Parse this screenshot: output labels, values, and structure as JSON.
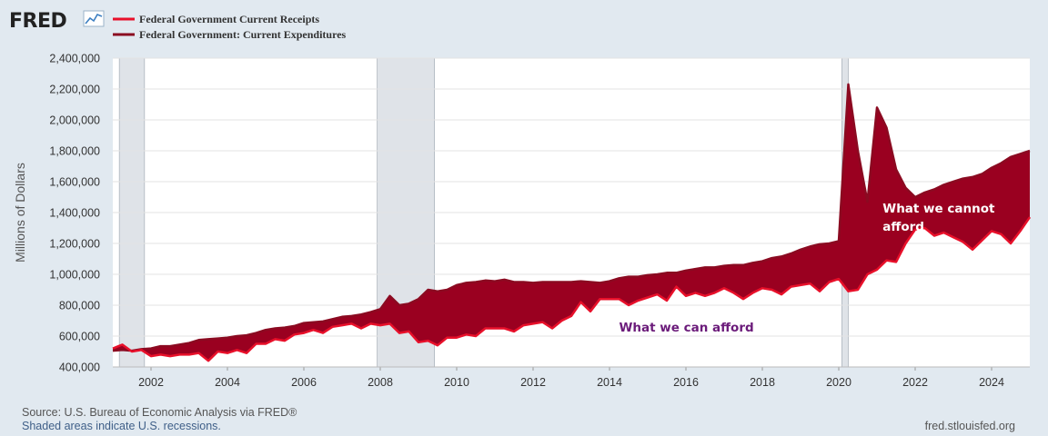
{
  "brand": {
    "name": "FRED"
  },
  "footer": {
    "source": "Source: U.S. Bureau of Economic Analysis via FRED®",
    "note": "Shaded areas indicate U.S. recessions.",
    "url": "fred.stlouisfed.org"
  },
  "colors": {
    "receipts": "#e8102a",
    "expenditures": "#8b0a21",
    "fill": "#9a0020",
    "recession": "#dfe3e8",
    "background": "#e1e9f0"
  },
  "chart_data": {
    "type": "area",
    "title": "",
    "xlabel": "",
    "ylabel": "Millions of Dollars",
    "xlim": [
      2001.0,
      2025.0
    ],
    "ylim": [
      400000,
      2400000
    ],
    "yticks": [
      400000,
      600000,
      800000,
      1000000,
      1200000,
      1400000,
      1600000,
      1800000,
      2000000,
      2200000,
      2400000
    ],
    "ytick_labels": [
      "400,000",
      "600,000",
      "800,000",
      "1,000,000",
      "1,200,000",
      "1,400,000",
      "1,600,000",
      "1,800,000",
      "2,000,000",
      "2,200,000",
      "2,400,000"
    ],
    "xticks": [
      2002,
      2004,
      2006,
      2008,
      2010,
      2012,
      2014,
      2016,
      2018,
      2020,
      2022,
      2024
    ],
    "xtick_labels": [
      "2002",
      "2004",
      "2006",
      "2008",
      "2010",
      "2012",
      "2014",
      "2016",
      "2018",
      "2020",
      "2022",
      "2024"
    ],
    "grid": true,
    "recessions": [
      [
        2001.17,
        2001.83
      ],
      [
        2007.92,
        2009.42
      ],
      [
        2020.08,
        2020.25
      ]
    ],
    "series": [
      {
        "name": "Federal Government Current Receipts",
        "points": [
          [
            2001.0,
            520000
          ],
          [
            2001.25,
            545000
          ],
          [
            2001.5,
            500000
          ],
          [
            2001.75,
            510000
          ],
          [
            2002.0,
            470000
          ],
          [
            2002.25,
            480000
          ],
          [
            2002.5,
            470000
          ],
          [
            2002.75,
            480000
          ],
          [
            2003.0,
            480000
          ],
          [
            2003.25,
            490000
          ],
          [
            2003.5,
            440000
          ],
          [
            2003.75,
            500000
          ],
          [
            2004.0,
            490000
          ],
          [
            2004.25,
            510000
          ],
          [
            2004.5,
            490000
          ],
          [
            2004.75,
            550000
          ],
          [
            2005.0,
            550000
          ],
          [
            2005.25,
            580000
          ],
          [
            2005.5,
            570000
          ],
          [
            2005.75,
            610000
          ],
          [
            2006.0,
            620000
          ],
          [
            2006.25,
            640000
          ],
          [
            2006.5,
            620000
          ],
          [
            2006.75,
            660000
          ],
          [
            2007.0,
            670000
          ],
          [
            2007.25,
            680000
          ],
          [
            2007.5,
            650000
          ],
          [
            2007.75,
            680000
          ],
          [
            2008.0,
            670000
          ],
          [
            2008.25,
            680000
          ],
          [
            2008.5,
            620000
          ],
          [
            2008.75,
            630000
          ],
          [
            2009.0,
            560000
          ],
          [
            2009.25,
            570000
          ],
          [
            2009.5,
            540000
          ],
          [
            2009.75,
            590000
          ],
          [
            2010.0,
            590000
          ],
          [
            2010.25,
            610000
          ],
          [
            2010.5,
            600000
          ],
          [
            2010.75,
            650000
          ],
          [
            2011.0,
            650000
          ],
          [
            2011.25,
            650000
          ],
          [
            2011.5,
            630000
          ],
          [
            2011.75,
            670000
          ],
          [
            2012.0,
            680000
          ],
          [
            2012.25,
            690000
          ],
          [
            2012.5,
            650000
          ],
          [
            2012.75,
            700000
          ],
          [
            2013.0,
            730000
          ],
          [
            2013.25,
            820000
          ],
          [
            2013.5,
            760000
          ],
          [
            2013.75,
            840000
          ],
          [
            2014.0,
            840000
          ],
          [
            2014.25,
            840000
          ],
          [
            2014.5,
            800000
          ],
          [
            2014.75,
            830000
          ],
          [
            2015.0,
            850000
          ],
          [
            2015.25,
            870000
          ],
          [
            2015.5,
            830000
          ],
          [
            2015.75,
            920000
          ],
          [
            2016.0,
            860000
          ],
          [
            2016.25,
            880000
          ],
          [
            2016.5,
            860000
          ],
          [
            2016.75,
            880000
          ],
          [
            2017.0,
            910000
          ],
          [
            2017.25,
            880000
          ],
          [
            2017.5,
            840000
          ],
          [
            2017.75,
            880000
          ],
          [
            2018.0,
            910000
          ],
          [
            2018.25,
            900000
          ],
          [
            2018.5,
            870000
          ],
          [
            2018.75,
            920000
          ],
          [
            2019.0,
            930000
          ],
          [
            2019.25,
            940000
          ],
          [
            2019.5,
            890000
          ],
          [
            2019.75,
            950000
          ],
          [
            2020.0,
            970000
          ],
          [
            2020.25,
            890000
          ],
          [
            2020.5,
            900000
          ],
          [
            2020.75,
            1000000
          ],
          [
            2021.0,
            1030000
          ],
          [
            2021.25,
            1090000
          ],
          [
            2021.5,
            1080000
          ],
          [
            2021.75,
            1200000
          ],
          [
            2022.0,
            1290000
          ],
          [
            2022.25,
            1300000
          ],
          [
            2022.5,
            1250000
          ],
          [
            2022.75,
            1270000
          ],
          [
            2023.0,
            1240000
          ],
          [
            2023.25,
            1210000
          ],
          [
            2023.5,
            1160000
          ],
          [
            2023.75,
            1220000
          ],
          [
            2024.0,
            1280000
          ],
          [
            2024.25,
            1260000
          ],
          [
            2024.5,
            1200000
          ],
          [
            2024.75,
            1280000
          ],
          [
            2025.0,
            1370000
          ]
        ]
      },
      {
        "name": "Federal Government: Current Expenditures",
        "points": [
          [
            2001.0,
            505000
          ],
          [
            2001.25,
            510000
          ],
          [
            2001.5,
            505000
          ],
          [
            2001.75,
            515000
          ],
          [
            2002.0,
            520000
          ],
          [
            2002.25,
            535000
          ],
          [
            2002.5,
            535000
          ],
          [
            2002.75,
            545000
          ],
          [
            2003.0,
            555000
          ],
          [
            2003.25,
            575000
          ],
          [
            2003.5,
            580000
          ],
          [
            2003.75,
            585000
          ],
          [
            2004.0,
            590000
          ],
          [
            2004.25,
            600000
          ],
          [
            2004.5,
            605000
          ],
          [
            2004.75,
            620000
          ],
          [
            2005.0,
            640000
          ],
          [
            2005.25,
            650000
          ],
          [
            2005.5,
            655000
          ],
          [
            2005.75,
            665000
          ],
          [
            2006.0,
            685000
          ],
          [
            2006.25,
            690000
          ],
          [
            2006.5,
            695000
          ],
          [
            2006.75,
            710000
          ],
          [
            2007.0,
            725000
          ],
          [
            2007.25,
            730000
          ],
          [
            2007.5,
            740000
          ],
          [
            2007.75,
            755000
          ],
          [
            2008.0,
            775000
          ],
          [
            2008.25,
            860000
          ],
          [
            2008.5,
            800000
          ],
          [
            2008.75,
            810000
          ],
          [
            2009.0,
            840000
          ],
          [
            2009.25,
            900000
          ],
          [
            2009.5,
            890000
          ],
          [
            2009.75,
            900000
          ],
          [
            2010.0,
            930000
          ],
          [
            2010.25,
            945000
          ],
          [
            2010.5,
            950000
          ],
          [
            2010.75,
            960000
          ],
          [
            2011.0,
            955000
          ],
          [
            2011.25,
            965000
          ],
          [
            2011.5,
            950000
          ],
          [
            2011.75,
            950000
          ],
          [
            2012.0,
            945000
          ],
          [
            2012.25,
            950000
          ],
          [
            2012.5,
            950000
          ],
          [
            2012.75,
            950000
          ],
          [
            2013.0,
            950000
          ],
          [
            2013.25,
            955000
          ],
          [
            2013.5,
            950000
          ],
          [
            2013.75,
            945000
          ],
          [
            2014.0,
            955000
          ],
          [
            2014.25,
            975000
          ],
          [
            2014.5,
            985000
          ],
          [
            2014.75,
            985000
          ],
          [
            2015.0,
            995000
          ],
          [
            2015.25,
            1000000
          ],
          [
            2015.5,
            1010000
          ],
          [
            2015.75,
            1010000
          ],
          [
            2016.0,
            1025000
          ],
          [
            2016.25,
            1035000
          ],
          [
            2016.5,
            1045000
          ],
          [
            2016.75,
            1045000
          ],
          [
            2017.0,
            1055000
          ],
          [
            2017.25,
            1060000
          ],
          [
            2017.5,
            1060000
          ],
          [
            2017.75,
            1075000
          ],
          [
            2018.0,
            1085000
          ],
          [
            2018.25,
            1105000
          ],
          [
            2018.5,
            1115000
          ],
          [
            2018.75,
            1135000
          ],
          [
            2019.0,
            1160000
          ],
          [
            2019.25,
            1180000
          ],
          [
            2019.5,
            1195000
          ],
          [
            2019.75,
            1200000
          ],
          [
            2020.0,
            1215000
          ],
          [
            2020.25,
            2230000
          ],
          [
            2020.5,
            1800000
          ],
          [
            2020.75,
            1470000
          ],
          [
            2021.0,
            2080000
          ],
          [
            2021.25,
            1950000
          ],
          [
            2021.5,
            1680000
          ],
          [
            2021.75,
            1560000
          ],
          [
            2022.0,
            1500000
          ],
          [
            2022.25,
            1530000
          ],
          [
            2022.5,
            1550000
          ],
          [
            2022.75,
            1580000
          ],
          [
            2023.0,
            1600000
          ],
          [
            2023.25,
            1620000
          ],
          [
            2023.5,
            1630000
          ],
          [
            2023.75,
            1650000
          ],
          [
            2024.0,
            1690000
          ],
          [
            2024.25,
            1720000
          ],
          [
            2024.5,
            1760000
          ],
          [
            2024.75,
            1780000
          ],
          [
            2025.0,
            1800000
          ]
        ]
      }
    ],
    "annotations": [
      {
        "lines": [
          "What  we cannot",
          "afford"
        ],
        "color": "#ffffff",
        "anchor": [
          2021.15,
          1400000
        ]
      },
      {
        "lines": [
          "What we can afford"
        ],
        "color": "#6b1b7a",
        "anchor": [
          2014.25,
          630000
        ]
      }
    ]
  }
}
